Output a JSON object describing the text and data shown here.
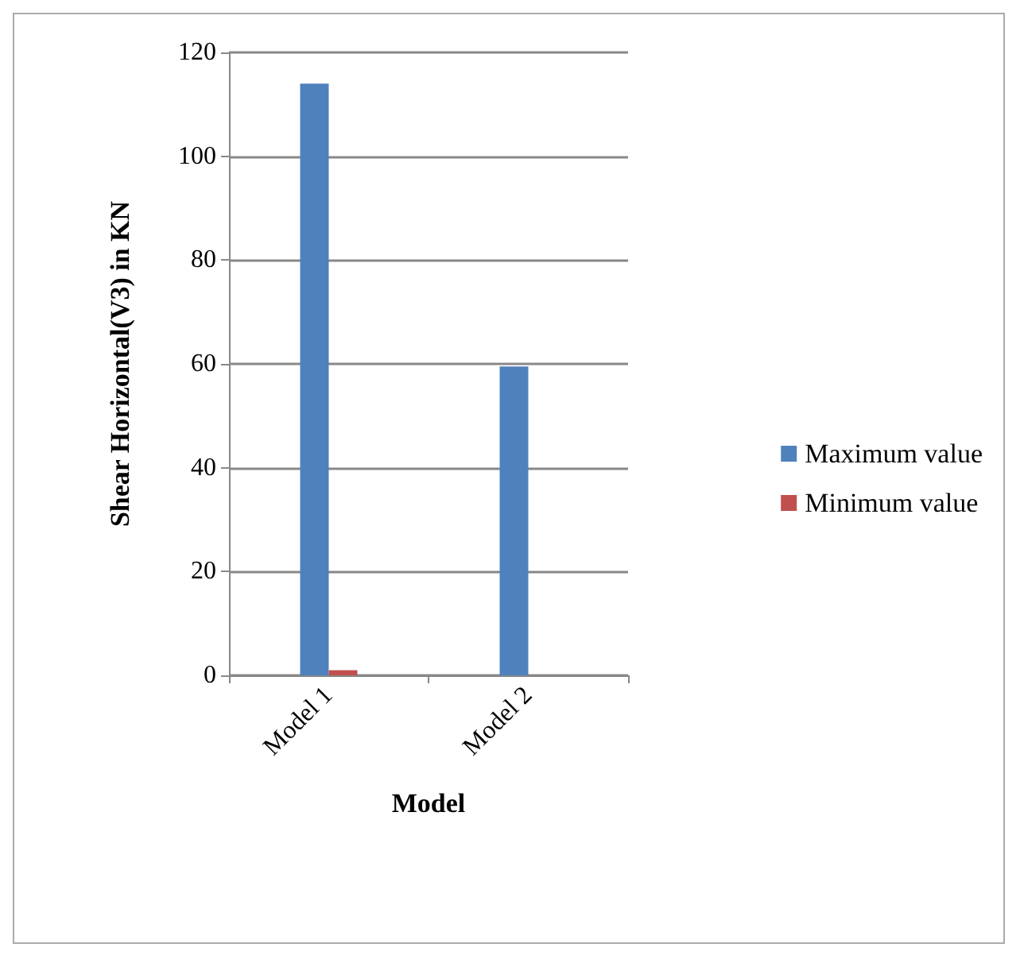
{
  "chart_data": {
    "type": "bar",
    "xlabel": "Model",
    "ylabel": "Shear Horizontal(V3) in KN",
    "categories": [
      "Model 1",
      "Model 2"
    ],
    "series": [
      {
        "name": "Maximum value",
        "color": "#4f81bd",
        "values": [
          114,
          59.5
        ]
      },
      {
        "name": "Minimum value",
        "color": "#c0504d",
        "values": [
          1,
          0
        ]
      }
    ],
    "ylim": [
      0,
      120
    ],
    "yticks": [
      0,
      20,
      40,
      60,
      80,
      100,
      120
    ],
    "grid": "y",
    "legend": "right"
  }
}
